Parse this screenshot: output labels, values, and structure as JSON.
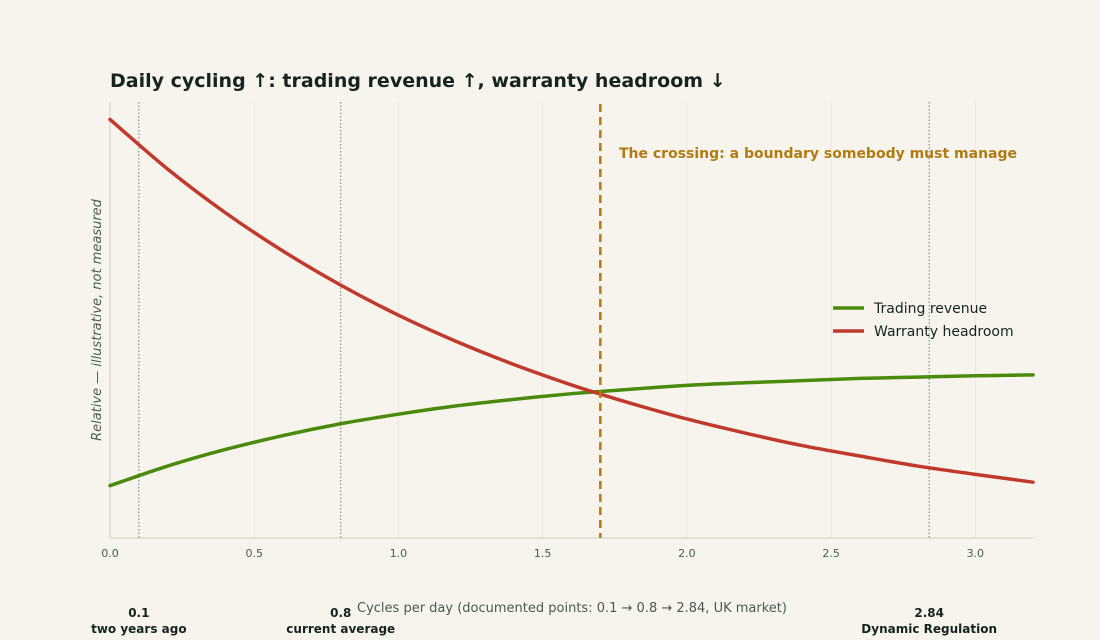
{
  "chart_data": {
    "type": "line",
    "title": "Daily cycling ↑: trading revenue ↑, warranty headroom ↓",
    "xlabel": "Cycles per day (documented points: 0.1 → 0.8 → 2.84, UK market)",
    "ylabel": "Relative — illustrative, not measured",
    "xlim": [
      0,
      3.2
    ],
    "ylim": [
      0,
      1
    ],
    "x_ticks": [
      "0.0",
      "0.5",
      "1.0",
      "1.5",
      "2.0",
      "2.5",
      "3.0"
    ],
    "grid": "vertical",
    "legend_position": "center-right",
    "series": [
      {
        "name": "Trading revenue",
        "color": "#4a8a0c",
        "x": [
          0,
          0.2,
          0.4,
          0.6,
          0.8,
          1.0,
          1.2,
          1.4,
          1.6,
          1.7,
          1.8,
          2.0,
          2.2,
          2.4,
          2.6,
          2.8,
          3.0,
          3.2
        ],
        "y": [
          0.12,
          0.165,
          0.203,
          0.235,
          0.262,
          0.284,
          0.303,
          0.318,
          0.331,
          0.336,
          0.341,
          0.35,
          0.356,
          0.361,
          0.366,
          0.369,
          0.372,
          0.374
        ]
      },
      {
        "name": "Warranty headroom",
        "color": "#c0392b",
        "x": [
          0,
          0.2,
          0.4,
          0.6,
          0.8,
          1.0,
          1.2,
          1.4,
          1.6,
          1.7,
          1.8,
          2.0,
          2.2,
          2.4,
          2.6,
          2.8,
          3.0,
          3.2
        ],
        "y": [
          0.96,
          0.846,
          0.746,
          0.658,
          0.58,
          0.511,
          0.451,
          0.398,
          0.351,
          0.33,
          0.31,
          0.273,
          0.241,
          0.212,
          0.188,
          0.165,
          0.146,
          0.128
        ]
      }
    ],
    "crossing": {
      "x": 1.7,
      "color": "#b27b12",
      "label": "The crossing: a boundary somebody must manage"
    },
    "markers": [
      {
        "x": 0.1,
        "value": "0.1",
        "caption": "two years ago"
      },
      {
        "x": 0.8,
        "value": "0.8",
        "caption": "current average"
      },
      {
        "x": 2.84,
        "value": "2.84",
        "caption": "Dynamic Regulation"
      }
    ]
  }
}
